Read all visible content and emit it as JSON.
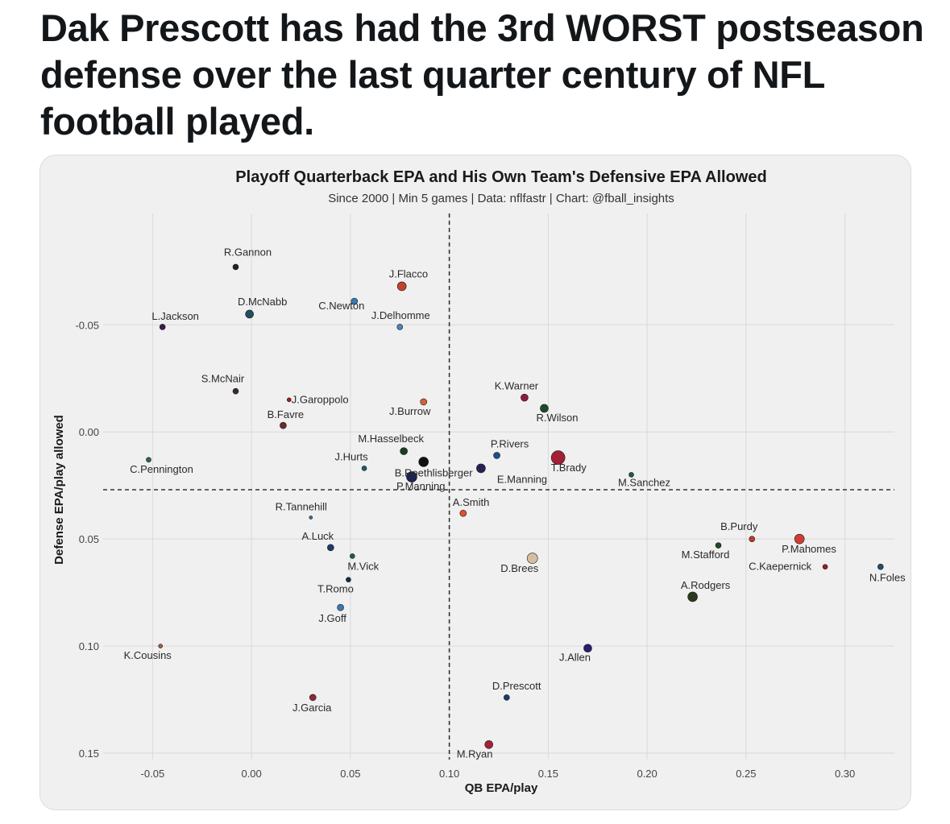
{
  "tweet": {
    "text": "Dak Prescott has had the 3rd WORST postseason defense over the last quarter century of NFL football played."
  },
  "chart_data": {
    "type": "scatter",
    "title": "Playoff Quarterback EPA and His Own Team's Defensive EPA Allowed",
    "subtitle": "Since 2000 | Min 5 games | Data: nflfastr | Chart: @fball_insights",
    "xlabel": "QB EPA/play",
    "ylabel": "Defense EPA/play allowed",
    "xlim": [
      -0.075,
      0.325
    ],
    "ylim": [
      -0.102,
      0.153
    ],
    "y_reversed": true,
    "grid": true,
    "x_ticks": [
      -0.05,
      0.0,
      0.05,
      0.1,
      0.15,
      0.2,
      0.25,
      0.3
    ],
    "x_tick_labels": [
      "-0.05",
      "0.00",
      "0.05",
      "0.10",
      "0.15",
      "0.20",
      "0.25",
      "0.30"
    ],
    "y_ticks": [
      -0.05,
      0.0,
      0.05,
      0.1,
      0.15
    ],
    "y_tick_labels": [
      "-0.05",
      "0.00",
      "0.05",
      "0.10",
      "0.15"
    ],
    "reference_lines": {
      "x": 0.1,
      "y": 0.027
    },
    "points": [
      {
        "name": "R.Gannon",
        "x": -0.008,
        "y": -0.077,
        "color": "#2b1d1d",
        "size": 6
      },
      {
        "name": "J.Flacco",
        "x": 0.076,
        "y": -0.068,
        "color": "#c1442a",
        "size": 10
      },
      {
        "name": "D.McNabb",
        "x": -0.001,
        "y": -0.055,
        "color": "#1f4e5f",
        "size": 9
      },
      {
        "name": "C.Newton",
        "x": 0.052,
        "y": -0.061,
        "color": "#3a79b0",
        "size": 7
      },
      {
        "name": "L.Jackson",
        "x": -0.045,
        "y": -0.049,
        "color": "#3b1f4f",
        "size": 6
      },
      {
        "name": "J.Delhomme",
        "x": 0.075,
        "y": -0.049,
        "color": "#4a86c0",
        "size": 6
      },
      {
        "name": "S.McNair",
        "x": -0.008,
        "y": -0.019,
        "color": "#3a2a2a",
        "size": 6
      },
      {
        "name": "K.Warner",
        "x": 0.138,
        "y": -0.016,
        "color": "#8b1d3a",
        "size": 8
      },
      {
        "name": "J.Garoppolo",
        "x": 0.019,
        "y": -0.015,
        "color": "#b01818",
        "size": 4
      },
      {
        "name": "J.Burrow",
        "x": 0.087,
        "y": -0.014,
        "color": "#d4603a",
        "size": 7
      },
      {
        "name": "R.Wilson",
        "x": 0.148,
        "y": -0.011,
        "color": "#1e4a2c",
        "size": 9
      },
      {
        "name": "B.Favre",
        "x": 0.016,
        "y": -0.003,
        "color": "#6e2b2b",
        "size": 7
      },
      {
        "name": "M.Hasselbeck",
        "x": 0.077,
        "y": 0.009,
        "color": "#1d3b20",
        "size": 8
      },
      {
        "name": "P.Rivers",
        "x": 0.124,
        "y": 0.011,
        "color": "#1c4f8e",
        "size": 7
      },
      {
        "name": "T.Brady",
        "x": 0.155,
        "y": 0.012,
        "color": "#a31f33",
        "size": 16
      },
      {
        "name": "B.Roethlisberger",
        "x": 0.087,
        "y": 0.014,
        "color": "#111111",
        "size": 11
      },
      {
        "name": "C.Pennington",
        "x": -0.052,
        "y": 0.013,
        "color": "#2d6b4a",
        "size": 5
      },
      {
        "name": "J.Hurts",
        "x": 0.057,
        "y": 0.017,
        "color": "#1f5f63",
        "size": 5
      },
      {
        "name": "E.Manning",
        "x": 0.116,
        "y": 0.017,
        "color": "#2a1f55",
        "size": 10
      },
      {
        "name": "M.Sanchez",
        "x": 0.192,
        "y": 0.02,
        "color": "#1e5a4a",
        "size": 5
      },
      {
        "name": "P.Manning",
        "x": 0.081,
        "y": 0.021,
        "color": "#1b2352",
        "size": 12
      },
      {
        "name": "R.Tannehill",
        "x": 0.03,
        "y": 0.04,
        "color": "#3b6ea5",
        "size": 3
      },
      {
        "name": "A.Smith",
        "x": 0.107,
        "y": 0.038,
        "color": "#e0502a",
        "size": 7
      },
      {
        "name": "B.Purdy",
        "x": 0.253,
        "y": 0.05,
        "color": "#c43a2a",
        "size": 6
      },
      {
        "name": "P.Mahomes",
        "x": 0.277,
        "y": 0.05,
        "color": "#d23d33",
        "size": 11
      },
      {
        "name": "M.Stafford",
        "x": 0.236,
        "y": 0.053,
        "color": "#1f4a2a",
        "size": 6
      },
      {
        "name": "A.Luck",
        "x": 0.04,
        "y": 0.054,
        "color": "#1b3a6e",
        "size": 7
      },
      {
        "name": "D.Brees",
        "x": 0.142,
        "y": 0.059,
        "color": "#d4bfa0",
        "size": 12
      },
      {
        "name": "M.Vick",
        "x": 0.051,
        "y": 0.058,
        "color": "#1f5a5a",
        "size": 5
      },
      {
        "name": "C.Kaepernick",
        "x": 0.29,
        "y": 0.063,
        "color": "#9c1c1c",
        "size": 5
      },
      {
        "name": "N.Foles",
        "x": 0.318,
        "y": 0.063,
        "color": "#1f4d6e",
        "size": 6
      },
      {
        "name": "T.Romo",
        "x": 0.049,
        "y": 0.069,
        "color": "#1a2a4a",
        "size": 5
      },
      {
        "name": "A.Rodgers",
        "x": 0.223,
        "y": 0.077,
        "color": "#2a3a1a",
        "size": 11
      },
      {
        "name": "J.Goff",
        "x": 0.045,
        "y": 0.082,
        "color": "#3a78b5",
        "size": 7
      },
      {
        "name": "K.Cousins",
        "x": -0.046,
        "y": 0.1,
        "color": "#b05a3a",
        "size": 4
      },
      {
        "name": "J.Allen",
        "x": 0.17,
        "y": 0.101,
        "color": "#281e6e",
        "size": 9
      },
      {
        "name": "D.Prescott",
        "x": 0.129,
        "y": 0.124,
        "color": "#1b3a6e",
        "size": 6
      },
      {
        "name": "J.Garcia",
        "x": 0.031,
        "y": 0.124,
        "color": "#8b2b3a",
        "size": 7
      },
      {
        "name": "M.Ryan",
        "x": 0.12,
        "y": 0.146,
        "color": "#a82035",
        "size": 9
      }
    ]
  }
}
